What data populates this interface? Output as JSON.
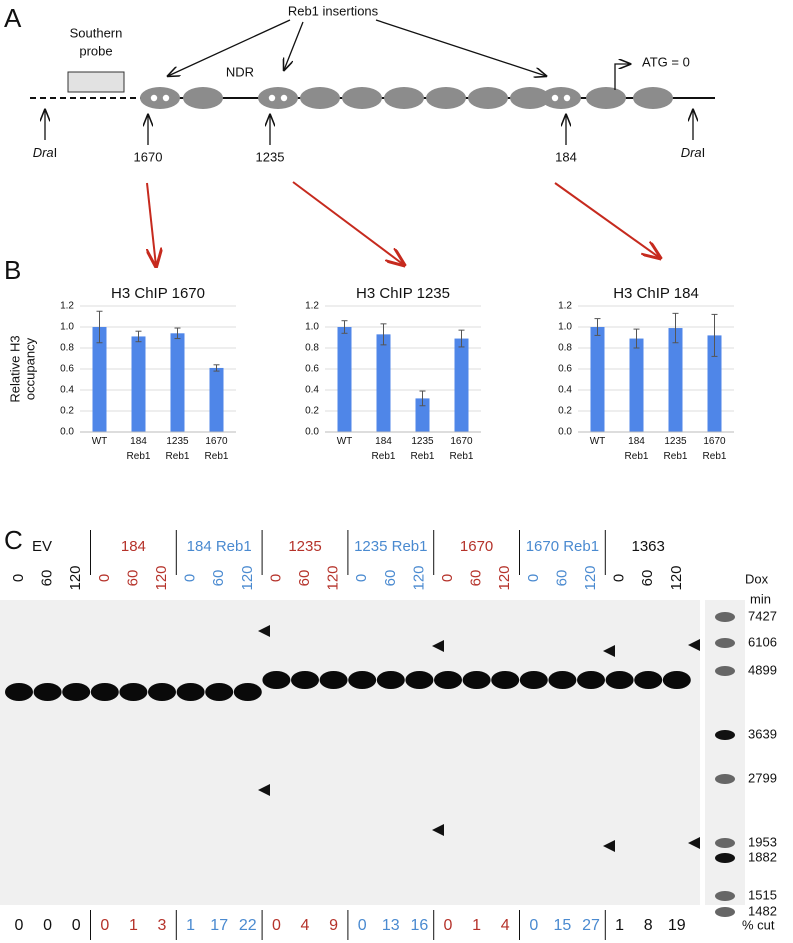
{
  "panel_a": {
    "label": "A",
    "reb1_label": "Reb1 insertions",
    "probe_label": [
      "Southern",
      "probe"
    ],
    "ndr": "NDR",
    "atg": "ATG = 0",
    "dra_left": [
      "Dra",
      "I"
    ],
    "dra_right": [
      "Dra",
      "I"
    ],
    "positions": [
      "1670",
      "1235",
      "184"
    ]
  },
  "panel_b": {
    "label": "B"
  },
  "chart_data": [
    {
      "type": "bar",
      "title": "H3 ChIP 1670",
      "y_label": [
        "Relative H3",
        "occupancy"
      ],
      "categories": [
        "WT",
        "184 Reb1",
        "1235 Reb1",
        "1670 Reb1"
      ],
      "values": [
        1.0,
        0.91,
        0.94,
        0.61
      ],
      "errors": [
        0.15,
        0.05,
        0.05,
        0.03
      ],
      "color": "#4f86e8",
      "ylim": [
        0,
        1.2
      ],
      "yticks": [
        {
          "value": 0,
          "label": "0.0"
        },
        0.2,
        0.4,
        0.6,
        0.8,
        {
          "value": 1,
          "label": "1.0"
        },
        1.2
      ],
      "grid": true
    },
    {
      "type": "bar",
      "title": "H3 ChIP 1235",
      "categories": [
        "WT",
        "184 Reb1",
        "1235 Reb1",
        "1670 Reb1"
      ],
      "values": [
        1.0,
        0.93,
        0.32,
        0.89
      ],
      "errors": [
        0.06,
        0.1,
        0.07,
        0.08
      ],
      "color": "#4f86e8",
      "ylim": [
        0,
        1.2
      ],
      "yticks": [
        {
          "value": 0,
          "label": "0.0"
        },
        0.2,
        0.4,
        0.6,
        0.8,
        {
          "value": 1,
          "label": "1.0"
        },
        1.2
      ],
      "grid": true
    },
    {
      "type": "bar",
      "title": "H3 ChIP 184",
      "categories": [
        "WT",
        "184 Reb1",
        "1235 Reb1",
        "1670 Reb1"
      ],
      "values": [
        1.0,
        0.89,
        0.99,
        0.92
      ],
      "errors": [
        0.08,
        0.09,
        0.14,
        0.2
      ],
      "color": "#4f86e8",
      "ylim": [
        0,
        1.2
      ],
      "yticks": [
        {
          "value": 0,
          "label": "0.0"
        },
        0.2,
        0.4,
        0.6,
        0.8,
        {
          "value": 1,
          "label": "1.0"
        },
        1.2
      ],
      "grid": true
    }
  ],
  "panel_c": {
    "label": "C",
    "dox": "Dox",
    "min": "min",
    "cut_label": "% cut",
    "groups": [
      {
        "name": "EV",
        "color": "#111111",
        "lanes": [
          0,
          60,
          120
        ],
        "cut": [
          0,
          0,
          0
        ]
      },
      {
        "name": "184",
        "color": "#b5322a",
        "lanes": [
          0,
          60,
          120
        ],
        "cut": [
          0,
          1,
          3
        ]
      },
      {
        "name": "184 Reb1",
        "color": "#4a8ad0",
        "lanes": [
          0,
          60,
          120
        ],
        "cut": [
          1,
          17,
          22
        ]
      },
      {
        "name": "1235",
        "color": "#b5322a",
        "lanes": [
          0,
          60,
          120
        ],
        "cut": [
          0,
          4,
          9
        ]
      },
      {
        "name": "1235 Reb1",
        "color": "#4a8ad0",
        "lanes": [
          0,
          60,
          120
        ],
        "cut": [
          0,
          13,
          16
        ]
      },
      {
        "name": "1670",
        "color": "#b5322a",
        "lanes": [
          0,
          60,
          120
        ],
        "cut": [
          0,
          1,
          4
        ]
      },
      {
        "name": "1670 Reb1",
        "color": "#4a8ad0",
        "lanes": [
          0,
          60,
          120
        ],
        "cut": [
          0,
          15,
          27
        ]
      },
      {
        "name": "1363",
        "color": "#111111",
        "lanes": [
          0,
          60,
          120
        ],
        "cut": [
          1,
          8,
          19
        ]
      }
    ],
    "markers": [
      7427,
      6106,
      4899,
      3639,
      2799,
      1953,
      1882,
      1515,
      1482
    ]
  }
}
